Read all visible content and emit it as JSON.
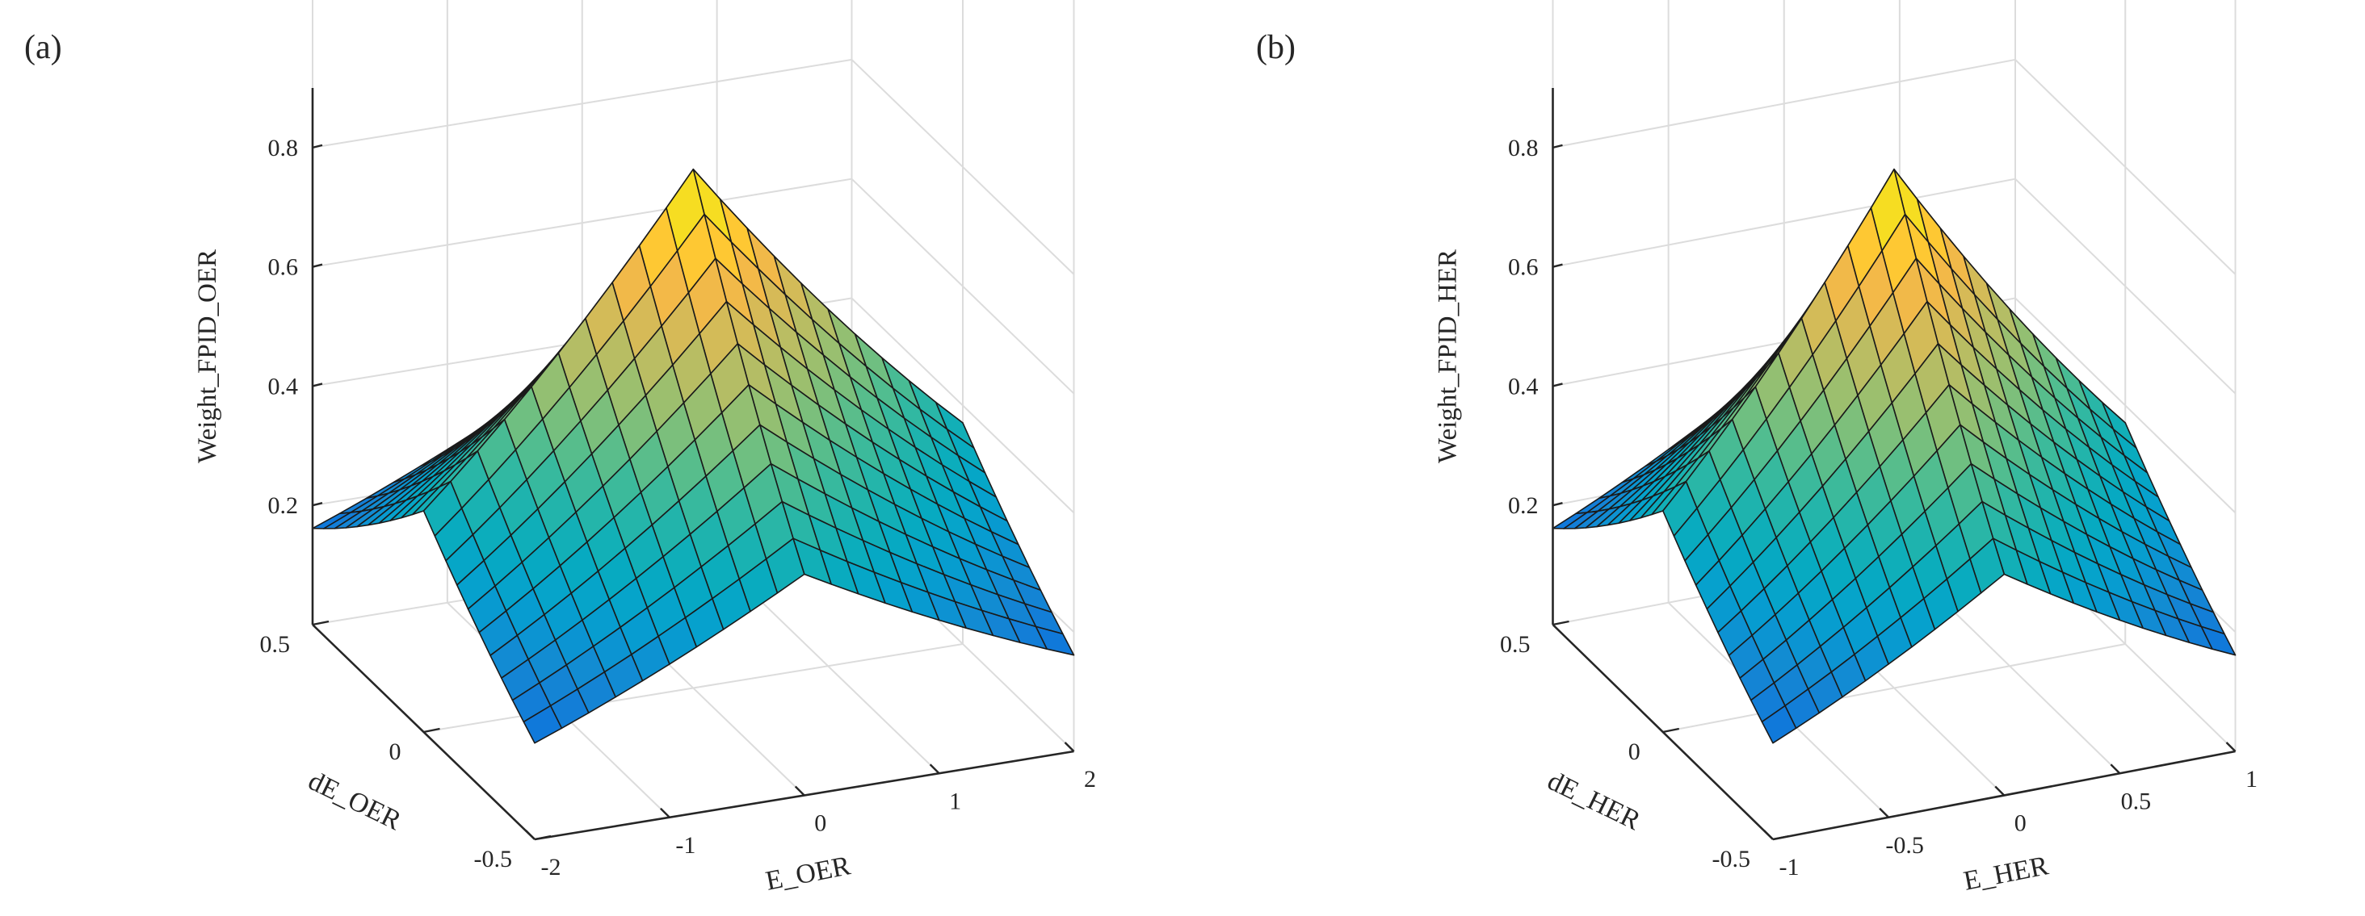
{
  "chart_data": [
    {
      "type": "surface",
      "panel_label": "(a)",
      "xlabel": "E_OER",
      "ylabel": "dE_OER",
      "zlabel": "Weight_FPID_OER",
      "xlim": [
        -2,
        2
      ],
      "ylim": [
        -0.5,
        0.5
      ],
      "zlim": [
        0,
        0.9
      ],
      "x_ticks": [
        "-2",
        "-1",
        "0",
        "1",
        "2"
      ],
      "y_ticks": [
        "-0.5",
        "0",
        "0.5"
      ],
      "z_ticks": [
        "0.2",
        "0.4",
        "0.6",
        "0.8"
      ],
      "grid": true,
      "colormap": "parula",
      "surface": "peak of about 0.86 at E_OER = 0, dE_OER = 0; about 0.53 at the ends of the centre lines; about 0.01 at the corners"
    },
    {
      "type": "surface",
      "panel_label": "(b)",
      "xlabel": "E_HER",
      "ylabel": "dE_HER",
      "zlabel": "Weight_FPID_HER",
      "xlim": [
        -1,
        1
      ],
      "ylim": [
        -0.5,
        0.5
      ],
      "zlim": [
        0,
        0.9
      ],
      "x_ticks": [
        "-1",
        "-0.5",
        "0",
        "0.5",
        "1"
      ],
      "y_ticks": [
        "-0.5",
        "0",
        "0.5"
      ],
      "z_ticks": [
        "0.2",
        "0.4",
        "0.6",
        "0.8"
      ],
      "grid": true,
      "colormap": "parula",
      "surface": "peak of about 0.86 at E_HER = 0, dE_HER = 0; about 0.53 at the ends of the centre lines; about 0.01 at the corners"
    }
  ]
}
